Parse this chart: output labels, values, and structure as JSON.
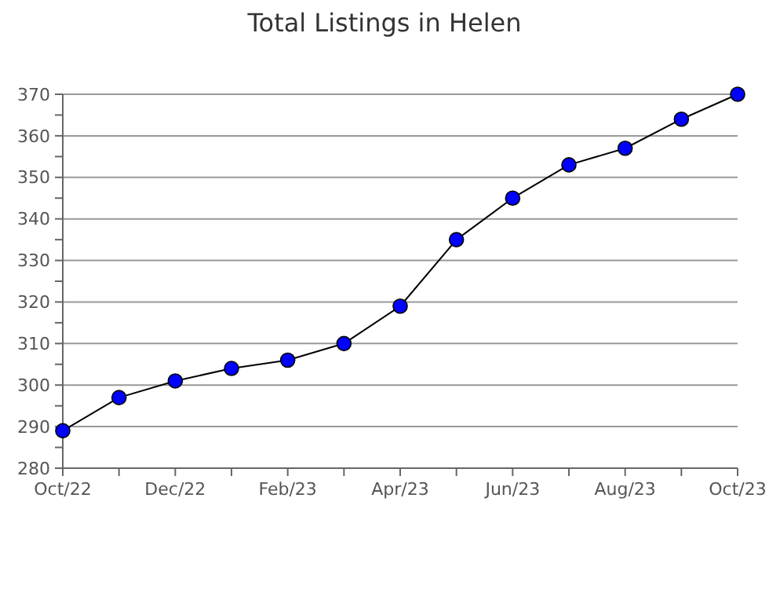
{
  "chart_data": {
    "type": "line",
    "title": "Total Listings in Helen",
    "categories": [
      "Oct/22",
      null,
      "Dec/22",
      null,
      "Feb/23",
      null,
      "Apr/23",
      null,
      "Jun/23",
      null,
      "Aug/23",
      null,
      "Oct/23"
    ],
    "series": [
      {
        "color": "#000000",
        "colors": [
          "#0000ff",
          "#0000ff",
          "#0000ff",
          "#0000ff",
          "#0000ff",
          "#0000ff",
          "#0000ff",
          "#0000ff",
          "#0000ff",
          "#0000ff",
          "#0000ff",
          "#0000ff",
          "#0000ff"
        ],
        "values": [
          289,
          297,
          301,
          304,
          306,
          310,
          319,
          335,
          345,
          353,
          357,
          364,
          370
        ]
      }
    ],
    "marker": "circle",
    "ylim": [
      280,
      370
    ],
    "yticks": [
      280,
      {
        "value": 285,
        "label": null
      },
      290,
      {
        "value": 295,
        "label": null
      },
      300,
      {
        "value": 305,
        "label": null
      },
      310,
      {
        "value": 315,
        "label": null
      },
      320,
      {
        "value": 325,
        "label": null
      },
      330,
      {
        "value": 335,
        "label": null
      },
      340,
      {
        "value": 345,
        "label": null
      },
      350,
      {
        "value": 355,
        "label": null
      },
      360,
      {
        "value": 365,
        "label": null
      },
      370
    ],
    "grid": "y"
  }
}
